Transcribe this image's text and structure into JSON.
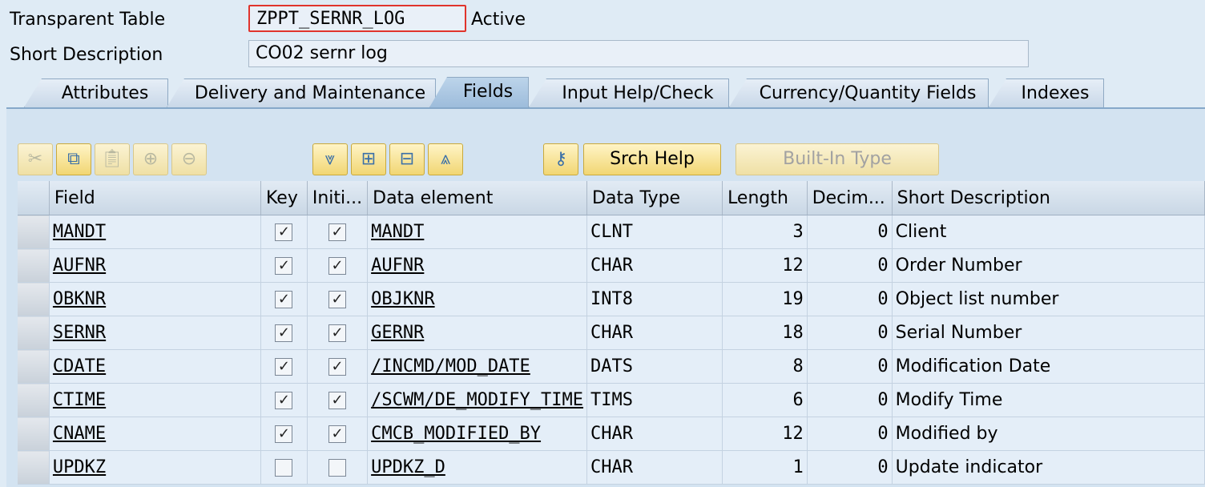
{
  "header": {
    "table_type_label": "Transparent Table",
    "table_name": "ZPPT_SERNR_LOG",
    "status": "Active",
    "short_desc_label": "Short Description",
    "short_desc_value": "CO02 sernr log"
  },
  "tabs": [
    {
      "label": "Attributes"
    },
    {
      "label": "Delivery and Maintenance"
    },
    {
      "label": "Fields"
    },
    {
      "label": "Input Help/Check"
    },
    {
      "label": "Currency/Quantity Fields"
    },
    {
      "label": "Indexes"
    }
  ],
  "toolbar": {
    "icons": [
      "cut-icon",
      "copy-icon",
      "paste-icon",
      "insert-row-icon",
      "delete-row-icon",
      "move-down-icon",
      "insert-icon",
      "delete-icon",
      "move-up-icon",
      "key-icon"
    ],
    "srch_help": "Srch Help",
    "builtin_type": "Built-In Type"
  },
  "columns": [
    "Field",
    "Key",
    "Initi...",
    "Data element",
    "Data Type",
    "Length",
    "Decim...",
    "Short Description"
  ],
  "rows": [
    {
      "field": "MANDT",
      "key": true,
      "init": true,
      "element": "MANDT",
      "type": "CLNT",
      "length": "3",
      "dec": "0",
      "desc": "Client"
    },
    {
      "field": "AUFNR",
      "key": true,
      "init": true,
      "element": "AUFNR",
      "type": "CHAR",
      "length": "12",
      "dec": "0",
      "desc": "Order Number"
    },
    {
      "field": "OBKNR",
      "key": true,
      "init": true,
      "element": "OBJKNR",
      "type": "INT8",
      "length": "19",
      "dec": "0",
      "desc": "Object list number"
    },
    {
      "field": "SERNR",
      "key": true,
      "init": true,
      "element": "GERNR",
      "type": "CHAR",
      "length": "18",
      "dec": "0",
      "desc": "Serial Number"
    },
    {
      "field": "CDATE",
      "key": true,
      "init": true,
      "element": "/INCMD/MOD_DATE",
      "type": "DATS",
      "length": "8",
      "dec": "0",
      "desc": "Modification Date"
    },
    {
      "field": "CTIME",
      "key": true,
      "init": true,
      "element": "/SCWM/DE_MODIFY_TIME",
      "type": "TIMS",
      "length": "6",
      "dec": "0",
      "desc": "Modify Time"
    },
    {
      "field": "CNAME",
      "key": true,
      "init": true,
      "element": "CMCB_MODIFIED_BY",
      "type": "CHAR",
      "length": "12",
      "dec": "0",
      "desc": "Modified by"
    },
    {
      "field": "UPDKZ",
      "key": false,
      "init": false,
      "element": "UPDKZ_D",
      "type": "CHAR",
      "length": "1",
      "dec": "0",
      "desc": "Update indicator"
    }
  ]
}
